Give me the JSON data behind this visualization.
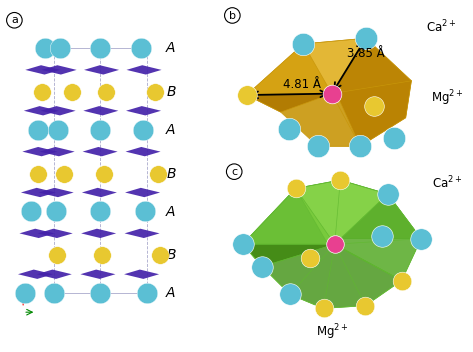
{
  "background_color": "#ffffff",
  "ca_color": "#5bbfd4",
  "mg_color": "#e8c830",
  "center_color": "#e84090",
  "panel_b_poly_color": "#c8960a",
  "panel_b_poly_light": "#e0b020",
  "panel_c_poly_color": "#60b830",
  "panel_c_poly_light": "#80d040",
  "co3_color": "#4422aa",
  "grid_color": "#aaaacc",
  "dist_1": "3.85 Å",
  "dist_2": "4.81 Å",
  "ca2plus": "Ca$^{2+}$",
  "mg2plus": "Mg$^{2+}$",
  "layer_labels": [
    "A",
    "B",
    "A",
    "B",
    "A",
    "B",
    "A"
  ],
  "layer_y": [
    8.6,
    7.1,
    5.8,
    4.3,
    3.0,
    1.5,
    0.2
  ]
}
